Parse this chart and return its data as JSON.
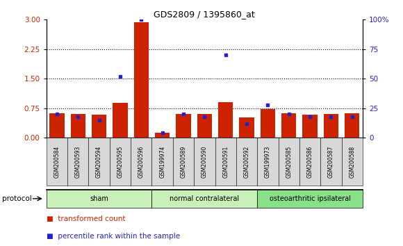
{
  "title": "GDS2809 / 1395860_at",
  "categories": [
    "GSM200584",
    "GSM200593",
    "GSM200594",
    "GSM200595",
    "GSM200596",
    "GSM199974",
    "GSM200589",
    "GSM200590",
    "GSM200591",
    "GSM200592",
    "GSM199973",
    "GSM200585",
    "GSM200586",
    "GSM200587",
    "GSM200588"
  ],
  "red_bars": [
    0.62,
    0.6,
    0.58,
    0.88,
    2.93,
    0.13,
    0.6,
    0.6,
    0.9,
    0.52,
    0.72,
    0.62,
    0.58,
    0.6,
    0.62
  ],
  "blue_percentiles": [
    20,
    18,
    15,
    52,
    100,
    4,
    20,
    18,
    70,
    12,
    28,
    20,
    18,
    18,
    18
  ],
  "groups": [
    {
      "label": "sham",
      "start": 0,
      "end": 5,
      "color": "#c8f0b8"
    },
    {
      "label": "normal contralateral",
      "start": 5,
      "end": 10,
      "color": "#c8f0b8"
    },
    {
      "label": "osteoarthritic ipsilateral",
      "start": 10,
      "end": 15,
      "color": "#88e088"
    }
  ],
  "ylim_left": [
    0,
    3.0
  ],
  "ylim_right": [
    0,
    100
  ],
  "yticks_left": [
    0,
    0.75,
    1.5,
    2.25,
    3.0
  ],
  "yticks_right": [
    0,
    25,
    50,
    75,
    100
  ],
  "red_color": "#cc2200",
  "blue_color": "#2222cc",
  "bar_width": 0.7,
  "protocol_label": "protocol",
  "legend_red": "transformed count",
  "legend_blue": "percentile rank within the sample",
  "background_color": "#ffffff"
}
